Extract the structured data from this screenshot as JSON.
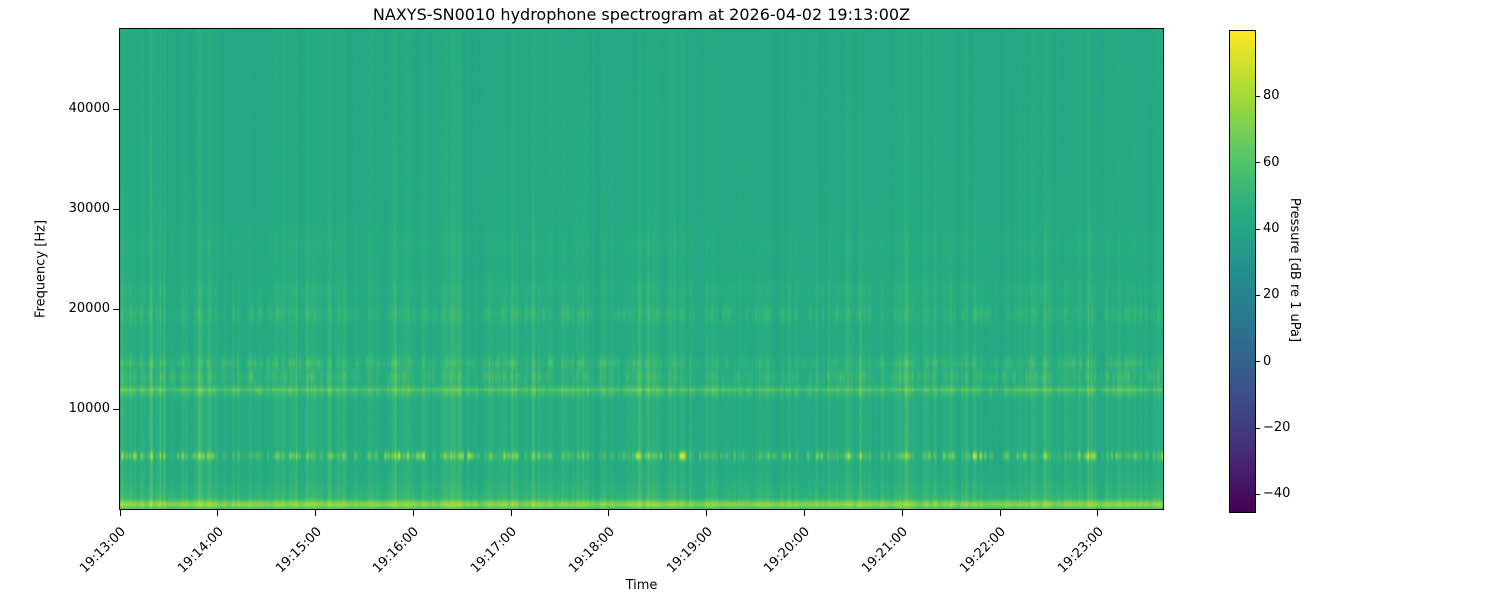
{
  "figure": {
    "background": "#ffffff",
    "text_color": "#000000"
  },
  "chart_data": {
    "type": "heatmap",
    "subtype": "spectrogram",
    "title": "NAXYS-SN0010 hydrophone spectrogram at 2026-04-02 19:13:00Z",
    "xlabel": "Time",
    "ylabel": "Frequency [Hz]",
    "x_ticks": [
      "19:13:00",
      "19:14:00",
      "19:15:00",
      "19:16:00",
      "19:17:00",
      "19:18:00",
      "19:19:00",
      "19:20:00",
      "19:21:00",
      "19:22:00",
      "19:23:00"
    ],
    "x_tick_seconds": [
      0,
      60,
      120,
      180,
      240,
      300,
      360,
      420,
      480,
      540,
      600
    ],
    "x_range_seconds": [
      0,
      640
    ],
    "ylim_hz": [
      0,
      48000
    ],
    "y_ticks": [
      10000,
      20000,
      30000,
      40000
    ],
    "grid": false,
    "colorbar": {
      "label": "Pressure [dB re 1 uPa]",
      "ticks": [
        {
          "value": 80,
          "label": "80"
        },
        {
          "value": 60,
          "label": "60"
        },
        {
          "value": 40,
          "label": "40"
        },
        {
          "value": 20,
          "label": "20"
        },
        {
          "value": 0,
          "label": "0"
        },
        {
          "value": -20,
          "label": "−20"
        },
        {
          "value": -40,
          "label": "−40"
        }
      ],
      "vmin": -45,
      "vmax": 100,
      "colormap": {
        "name": "viridis",
        "stops": [
          "#440154",
          "#472c7a",
          "#3b518b",
          "#2c718e",
          "#21908d",
          "#27ad81",
          "#5cc863",
          "#aadc32",
          "#fde725"
        ]
      }
    },
    "background_level_db": 43.5,
    "bands": [
      {
        "name": "low-frequency surface noise",
        "center_hz": 450,
        "bandwidth_hz": 660,
        "peak_db": 68,
        "character": "continuous-low"
      },
      {
        "name": "low shelf",
        "center_hz": 900,
        "bandwidth_hz": 3000,
        "peak_db": 49,
        "character": "continuous"
      },
      {
        "name": "pulsed tonal ~5.3 kHz",
        "center_hz": 5300,
        "bandwidth_hz": 700,
        "peak_db": 87,
        "character": "pulsed"
      },
      {
        "name": "band ~11.8 kHz",
        "center_hz": 11800,
        "bandwidth_hz": 950,
        "peak_db": 57,
        "character": "quasi-continuous"
      },
      {
        "name": "narrow tone ~12 kHz",
        "center_hz": 11950,
        "bandwidth_hz": 220,
        "peak_db": 53,
        "character": "continuous"
      },
      {
        "name": "band ~13.2 kHz",
        "center_hz": 13200,
        "bandwidth_hz": 1100,
        "peak_db": 55,
        "character": "bursty"
      },
      {
        "name": "band ~14.6 kHz",
        "center_hz": 14600,
        "bandwidth_hz": 1000,
        "peak_db": 55,
        "character": "bursty"
      },
      {
        "name": "band ~19.5 kHz",
        "center_hz": 19500,
        "bandwidth_hz": 1500,
        "peak_db": 52,
        "character": "bursty"
      },
      {
        "name": "faint band ~21.9 kHz",
        "center_hz": 21900,
        "bandwidth_hz": 1600,
        "peak_db": 47,
        "character": "faint"
      },
      {
        "name": "very faint band ~26.5 kHz",
        "center_hz": 26500,
        "bandwidth_hz": 2000,
        "peak_db": 45.5,
        "character": "faint"
      }
    ],
    "clicks": {
      "description": "broadband vertical click/transient striations across all frequencies",
      "approx_count": 300,
      "strength_db_range": [
        1.5,
        14
      ]
    }
  }
}
